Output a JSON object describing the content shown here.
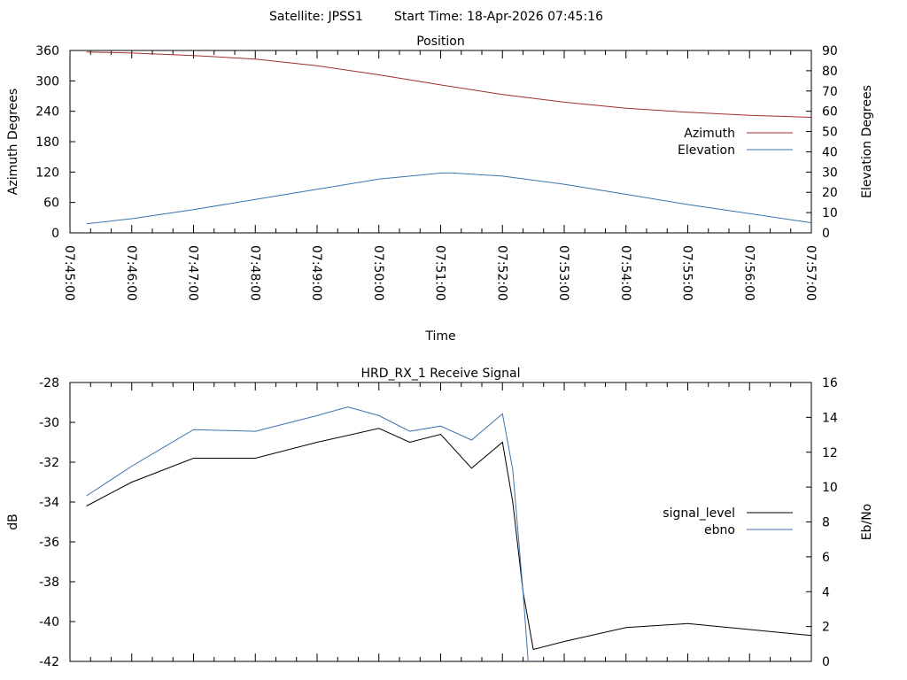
{
  "header": {
    "satellite_label": "Satellite: JPSS1",
    "start_time_label": "Start Time: 18-Apr-2026 07:45:16"
  },
  "chart_data": [
    {
      "type": "line",
      "title": "Position",
      "xlabel": "Time",
      "ylabel_left": "Azimuth Degrees",
      "ylabel_right": "Elevation Degrees",
      "xlim": [
        "07:45:00",
        "07:57:00"
      ],
      "x_ticks": [
        "07:45:00",
        "07:46:00",
        "07:47:00",
        "07:48:00",
        "07:49:00",
        "07:50:00",
        "07:51:00",
        "07:52:00",
        "07:53:00",
        "07:54:00",
        "07:55:00",
        "07:56:00",
        "07:57:00"
      ],
      "y_left_lim": [
        0,
        360
      ],
      "y_left_ticks": [
        "0",
        "60",
        "120",
        "180",
        "240",
        "300",
        "360"
      ],
      "y_right_lim": [
        0,
        90
      ],
      "y_right_ticks": [
        "0",
        "10",
        "20",
        "30",
        "40",
        "50",
        "60",
        "70",
        "80",
        "90"
      ],
      "legend_position": "right",
      "series": [
        {
          "name": "Azimuth",
          "axis": "left",
          "color": "#a0302a",
          "x": [
            "07:45:16",
            "07:46:00",
            "07:47:00",
            "07:48:00",
            "07:49:00",
            "07:50:00",
            "07:51:00",
            "07:52:00",
            "07:53:00",
            "07:54:00",
            "07:55:00",
            "07:56:00",
            "07:57:00"
          ],
          "values": [
            357,
            355,
            350,
            343,
            330,
            312,
            292,
            273,
            258,
            246,
            238,
            232,
            228
          ]
        },
        {
          "name": "Elevation",
          "axis": "right",
          "color": "#3b73ad",
          "x": [
            "07:45:16",
            "07:46:00",
            "07:47:00",
            "07:48:00",
            "07:49:00",
            "07:50:00",
            "07:51:00",
            "07:51:10",
            "07:52:00",
            "07:53:00",
            "07:54:00",
            "07:55:00",
            "07:56:00",
            "07:57:00"
          ],
          "values": [
            4.5,
            7,
            11.5,
            16.5,
            21.5,
            26.5,
            29.5,
            29.6,
            28,
            24,
            19,
            14,
            9.5,
            5
          ]
        }
      ]
    },
    {
      "type": "line",
      "title": "HRD_RX_1 Receive Signal",
      "ylabel_left": "dB",
      "ylabel_right": "Eb/No",
      "xlim": [
        "07:45:00",
        "07:57:00"
      ],
      "y_left_lim": [
        -42,
        -28
      ],
      "y_left_ticks": [
        "-42",
        "-40",
        "-38",
        "-36",
        "-34",
        "-32",
        "-30",
        "-28"
      ],
      "y_right_lim": [
        0,
        16
      ],
      "y_right_ticks": [
        "0",
        "2",
        "4",
        "6",
        "8",
        "10",
        "12",
        "14",
        "16"
      ],
      "legend_position": "right",
      "series": [
        {
          "name": "signal_level",
          "axis": "left",
          "color": "#000000",
          "x": [
            "07:45:16",
            "07:46:00",
            "07:47:00",
            "07:48:00",
            "07:49:00",
            "07:50:00",
            "07:50:30",
            "07:51:00",
            "07:51:30",
            "07:52:00",
            "07:52:10",
            "07:52:20",
            "07:52:30",
            "07:53:00",
            "07:54:00",
            "07:55:00",
            "07:56:00",
            "07:57:00"
          ],
          "values": [
            -34.2,
            -33.0,
            -31.8,
            -31.8,
            -31.0,
            -30.3,
            -31.0,
            -30.6,
            -32.3,
            -31.0,
            -34.0,
            -38.5,
            -41.4,
            -41.0,
            -40.3,
            -40.1,
            -40.4,
            -40.7
          ]
        },
        {
          "name": "ebno",
          "axis": "right",
          "color": "#3b73ad",
          "x": [
            "07:45:16",
            "07:46:00",
            "07:47:00",
            "07:48:00",
            "07:49:00",
            "07:49:30",
            "07:50:00",
            "07:50:30",
            "07:51:00",
            "07:51:30",
            "07:52:00",
            "07:52:10",
            "07:52:20",
            "07:52:25"
          ],
          "values": [
            9.5,
            11.2,
            13.3,
            13.2,
            14.1,
            14.6,
            14.1,
            13.2,
            13.5,
            12.7,
            14.2,
            11.0,
            4.0,
            0
          ]
        }
      ]
    }
  ]
}
